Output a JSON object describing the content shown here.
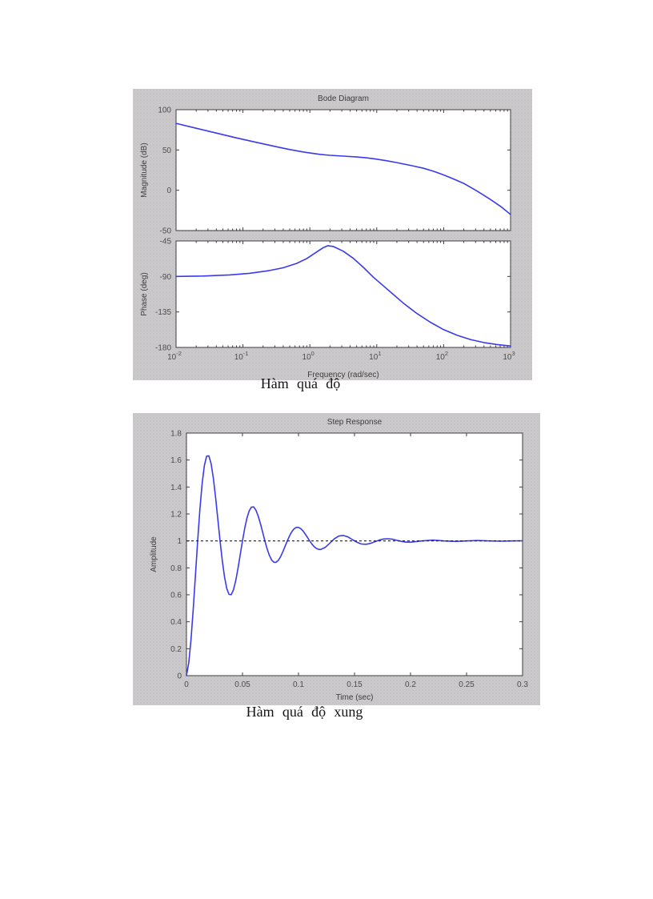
{
  "captions": {
    "under_bode": "Hàm quá độ",
    "under_step": "Hàm quá độ xung"
  },
  "colors": {
    "curve": "#3a3aec",
    "figure_bg": "#cccbcc",
    "plot_bg": "#ffffff",
    "axis": "#3d3d3d",
    "tick_label": "#4d4d4d",
    "dashed_reference": "#1c1c1c"
  },
  "chart_data": [
    {
      "type": "line",
      "title": "Bode Diagram",
      "ylabel": "Magnitude (dB)",
      "x_scale": "log10",
      "x_unit": "rad/sec",
      "xlim_log10": [
        -2,
        3
      ],
      "ylim": [
        -50,
        100
      ],
      "yticks": [
        100,
        50,
        0,
        -50
      ],
      "ytick_labels": [
        "100",
        "50",
        "0",
        "-50"
      ],
      "xtick_exponents": [
        -2,
        -1,
        0,
        1,
        2,
        3
      ],
      "show_xtick_labels": false,
      "grid": false,
      "series": [
        {
          "name": "magnitude",
          "x": [
            -2,
            -1.7,
            -1.4,
            -1.1,
            -0.8,
            -0.5,
            -0.3,
            -0.1,
            0,
            0.15,
            0.3,
            0.5,
            0.7,
            0.85,
            1,
            1.15,
            1.3,
            1.5,
            1.7,
            1.85,
            2,
            2.15,
            2.3,
            2.5,
            2.7,
            2.85,
            3
          ],
          "y": [
            83,
            77,
            71,
            65,
            59.5,
            54,
            50.5,
            47.5,
            46.3,
            44.6,
            43.4,
            42.4,
            41.3,
            40.2,
            38.6,
            36.6,
            34.3,
            31,
            27.3,
            23.5,
            19,
            14,
            8.5,
            -1,
            -11.5,
            -20,
            -30
          ]
        }
      ]
    },
    {
      "type": "line",
      "title": "",
      "ylabel": "Phase (deg)",
      "xlabel": "Frequency (rad/sec)",
      "x_scale": "log10",
      "x_unit": "rad/sec",
      "xlim_log10": [
        -2,
        3
      ],
      "ylim": [
        -180,
        -45
      ],
      "yticks": [
        -45,
        -90,
        -135,
        -180
      ],
      "ytick_labels": [
        "-45",
        "-90",
        "-135",
        "-180"
      ],
      "xtick_exponents": [
        -2,
        -1,
        0,
        1,
        2,
        3
      ],
      "show_xtick_labels": true,
      "grid": false,
      "series": [
        {
          "name": "phase",
          "x": [
            -2,
            -1.6,
            -1.2,
            -0.9,
            -0.6,
            -0.4,
            -0.2,
            -0.05,
            0.1,
            0.2,
            0.27,
            0.35,
            0.5,
            0.65,
            0.8,
            0.95,
            1.1,
            1.25,
            1.4,
            1.6,
            1.8,
            2,
            2.2,
            2.4,
            2.6,
            2.8,
            3
          ],
          "y": [
            -90,
            -89.5,
            -88,
            -86,
            -82.5,
            -79,
            -73.5,
            -67.5,
            -59,
            -53.5,
            -51,
            -52,
            -58,
            -67,
            -78.5,
            -91,
            -102,
            -113,
            -124,
            -137,
            -148,
            -157.5,
            -164.5,
            -170,
            -173.8,
            -176.3,
            -178.2
          ]
        }
      ]
    },
    {
      "type": "line",
      "title": "Step Response",
      "xlabel": "Time (sec)",
      "ylabel": "Amplitude",
      "xlim": [
        0,
        0.3
      ],
      "ylim": [
        0,
        1.8
      ],
      "xticks": [
        0,
        0.05,
        0.1,
        0.15,
        0.2,
        0.25,
        0.3
      ],
      "xtick_labels": [
        "0",
        "0.05",
        "0.1",
        "0.15",
        "0.2",
        "0.25",
        "0.3"
      ],
      "yticks": [
        0,
        0.2,
        0.4,
        0.6,
        0.8,
        1,
        1.2,
        1.4,
        1.6,
        1.8
      ],
      "ytick_labels": [
        "0",
        "0.2",
        "0.4",
        "0.6",
        "0.8",
        "1",
        "1.2",
        "1.4",
        "1.6",
        "1.8"
      ],
      "grid": false,
      "reference_line": {
        "y": 1,
        "style": "dashed"
      },
      "series": [
        {
          "name": "step response",
          "x": [
            0,
            0.002,
            0.004,
            0.006,
            0.008,
            0.01,
            0.012,
            0.014,
            0.016,
            0.018,
            0.02,
            0.022,
            0.024,
            0.026,
            0.028,
            0.03,
            0.032,
            0.034,
            0.036,
            0.038,
            0.04,
            0.042,
            0.044,
            0.046,
            0.048,
            0.05,
            0.052,
            0.054,
            0.056,
            0.058,
            0.06,
            0.062,
            0.064,
            0.066,
            0.068,
            0.07,
            0.072,
            0.074,
            0.076,
            0.078,
            0.08,
            0.082,
            0.084,
            0.086,
            0.088,
            0.09,
            0.092,
            0.094,
            0.096,
            0.098,
            0.1,
            0.102,
            0.104,
            0.106,
            0.108,
            0.11,
            0.112,
            0.114,
            0.116,
            0.118,
            0.12,
            0.124,
            0.128,
            0.132,
            0.136,
            0.14,
            0.144,
            0.148,
            0.152,
            0.156,
            0.16,
            0.164,
            0.168,
            0.172,
            0.176,
            0.18,
            0.184,
            0.188,
            0.192,
            0.196,
            0.2,
            0.21,
            0.22,
            0.23,
            0.24,
            0.25,
            0.26,
            0.27,
            0.28,
            0.29,
            0.3
          ],
          "y": [
            0,
            0.092,
            0.262,
            0.488,
            0.743,
            1.0,
            1.235,
            1.426,
            1.56,
            1.629,
            1.631,
            1.573,
            1.466,
            1.323,
            1.162,
            1.0,
            0.852,
            0.731,
            0.646,
            0.603,
            0.601,
            0.638,
            0.706,
            0.796,
            0.898,
            1.0,
            1.093,
            1.17,
            1.223,
            1.25,
            1.252,
            1.228,
            1.185,
            1.129,
            1.065,
            1.0,
            0.941,
            0.893,
            0.859,
            0.842,
            0.841,
            0.856,
            0.883,
            0.919,
            0.959,
            1.0,
            1.037,
            1.068,
            1.089,
            1.1,
            1.1,
            1.091,
            1.074,
            1.051,
            1.026,
            1.0,
            0.976,
            0.957,
            0.944,
            0.937,
            0.937,
            0.953,
            0.984,
            1.015,
            1.036,
            1.04,
            1.03,
            1.01,
            0.991,
            0.977,
            0.975,
            0.981,
            0.993,
            1.006,
            1.014,
            1.016,
            1.012,
            1.004,
            0.996,
            0.991,
            0.99,
            1.0,
            1.006,
            1.0,
            0.996,
            1.0,
            1.003,
            1.0,
            0.998,
            1.0,
            1.001
          ]
        }
      ]
    }
  ]
}
